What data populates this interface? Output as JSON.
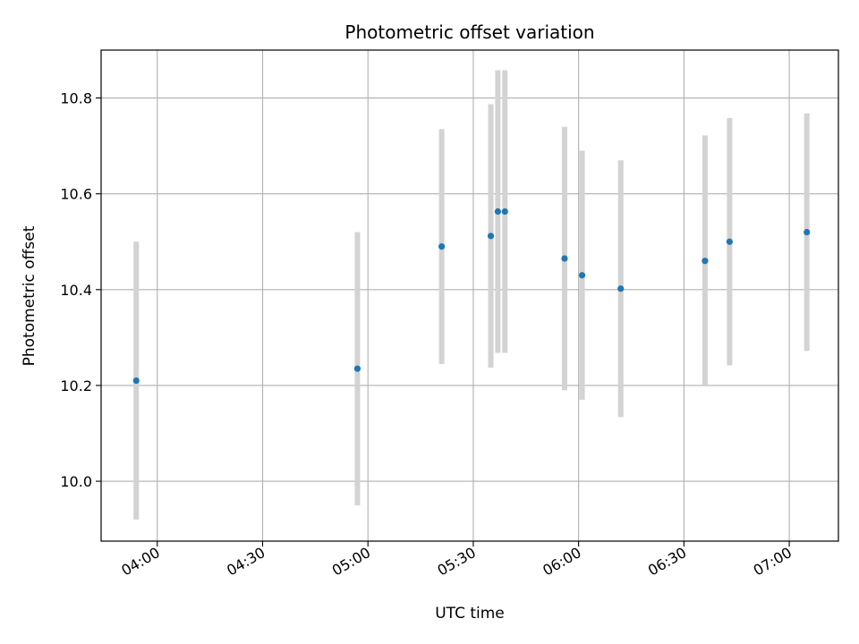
{
  "chart_data": {
    "type": "scatter",
    "title": "Photometric offset variation",
    "xlabel": "UTC time",
    "ylabel": "Photometric offset",
    "xlim": [
      "03:44",
      "07:14"
    ],
    "ylim": [
      9.875,
      10.9
    ],
    "x_ticks": [
      "04:00",
      "04:30",
      "05:00",
      "05:30",
      "06:00",
      "06:30",
      "07:00"
    ],
    "y_ticks": [
      "10.0",
      "10.2",
      "10.4",
      "10.6",
      "10.8"
    ],
    "grid": true,
    "legend": "none",
    "colors": {
      "points": "#1f77b4",
      "errorbars": "#d3d3d3",
      "grid": "#b0b0b0"
    },
    "points": [
      {
        "x": "03:54",
        "y": 10.21,
        "yerr": 0.29
      },
      {
        "x": "04:57",
        "y": 10.235,
        "yerr": 0.285
      },
      {
        "x": "05:21",
        "y": 10.49,
        "yerr": 0.245
      },
      {
        "x": "05:35",
        "y": 10.512,
        "yerr": 0.275
      },
      {
        "x": "05:37",
        "y": 10.563,
        "yerr": 0.295
      },
      {
        "x": "05:39",
        "y": 10.563,
        "yerr": 0.295
      },
      {
        "x": "05:56",
        "y": 10.465,
        "yerr": 0.275
      },
      {
        "x": "06:01",
        "y": 10.43,
        "yerr": 0.26
      },
      {
        "x": "06:12",
        "y": 10.402,
        "yerr": 0.268
      },
      {
        "x": "06:36",
        "y": 10.46,
        "yerr": 0.262
      },
      {
        "x": "06:43",
        "y": 10.5,
        "yerr": 0.258
      },
      {
        "x": "07:05",
        "y": 10.52,
        "yerr": 0.248
      }
    ]
  }
}
